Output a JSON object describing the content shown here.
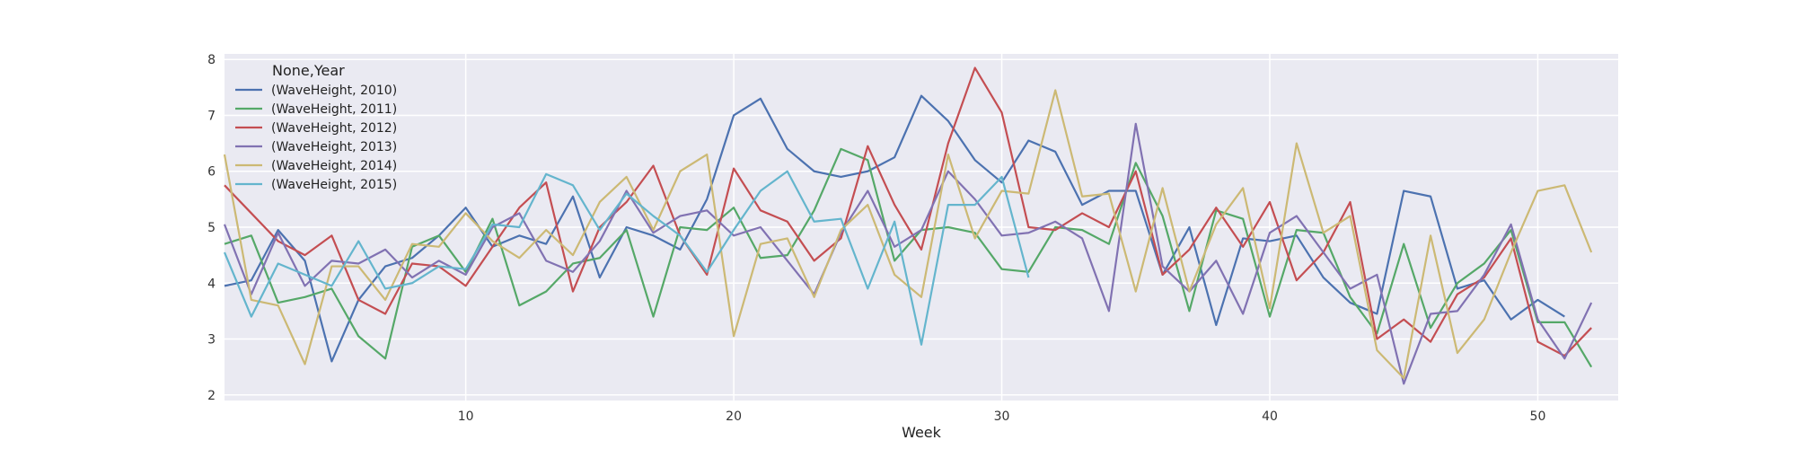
{
  "chart_data": {
    "type": "line",
    "xlabel": "Week",
    "ylabel": "",
    "xlim": [
      1,
      53
    ],
    "ylim": [
      1.9,
      8.1
    ],
    "x_ticks": [
      10,
      20,
      30,
      40,
      50
    ],
    "y_ticks": [
      2,
      3,
      4,
      5,
      6,
      7,
      8
    ],
    "grid": true,
    "legend": {
      "title": "None,Year",
      "placement": "top-left"
    },
    "x": [
      1,
      2,
      3,
      4,
      5,
      6,
      7,
      8,
      9,
      10,
      11,
      12,
      13,
      14,
      15,
      16,
      17,
      18,
      19,
      20,
      21,
      22,
      23,
      24,
      25,
      26,
      27,
      28,
      29,
      30,
      31,
      32,
      33,
      34,
      35,
      36,
      37,
      38,
      39,
      40,
      41,
      42,
      43,
      44,
      45,
      46,
      47,
      48,
      49,
      50,
      51,
      52
    ],
    "series": [
      {
        "name": "(WaveHeight, 2010)",
        "color": "#4C72B0",
        "values": [
          3.95,
          4.05,
          4.95,
          4.4,
          2.6,
          3.7,
          4.3,
          4.45,
          4.85,
          5.35,
          4.65,
          4.85,
          4.7,
          5.55,
          4.1,
          5.0,
          4.85,
          4.6,
          5.5,
          7.0,
          7.3,
          6.4,
          6.0,
          5.9,
          6.0,
          6.25,
          7.35,
          6.9,
          6.2,
          5.8,
          6.55,
          6.35,
          5.4,
          5.65,
          5.65,
          4.15,
          5.0,
          3.25,
          4.8,
          4.75,
          4.85,
          4.1,
          3.65,
          3.45,
          5.65,
          5.55,
          3.9,
          4.05,
          3.35,
          3.7,
          3.4,
          null
        ]
      },
      {
        "name": "(WaveHeight, 2011)",
        "color": "#55A868",
        "values": [
          4.7,
          4.85,
          3.65,
          3.75,
          3.9,
          3.05,
          2.65,
          4.65,
          4.85,
          4.2,
          5.15,
          3.6,
          3.85,
          4.35,
          4.45,
          4.95,
          3.4,
          5.0,
          4.95,
          5.35,
          4.45,
          4.5,
          5.3,
          6.4,
          6.2,
          4.4,
          4.95,
          5.0,
          4.9,
          4.25,
          4.2,
          5.0,
          4.95,
          4.7,
          6.15,
          5.2,
          3.5,
          5.3,
          5.15,
          3.4,
          4.95,
          4.9,
          3.75,
          3.1,
          4.7,
          3.2,
          4.0,
          4.35,
          4.95,
          3.3,
          3.3,
          2.5
        ]
      },
      {
        "name": "(WaveHeight, 2012)",
        "color": "#C44E52",
        "values": [
          5.75,
          5.25,
          4.75,
          4.5,
          4.85,
          3.7,
          3.45,
          4.35,
          4.3,
          3.95,
          4.65,
          5.35,
          5.8,
          3.85,
          5.0,
          5.45,
          6.1,
          4.85,
          4.15,
          6.05,
          5.3,
          5.1,
          4.4,
          4.8,
          6.45,
          5.4,
          4.6,
          6.5,
          7.85,
          7.05,
          5.0,
          4.95,
          5.25,
          5.0,
          6.0,
          4.15,
          4.6,
          5.35,
          4.65,
          5.45,
          4.05,
          4.55,
          5.45,
          3.0,
          3.35,
          2.95,
          3.8,
          4.1,
          4.8,
          2.95,
          2.7,
          3.2
        ]
      },
      {
        "name": "(WaveHeight, 2013)",
        "color": "#8172B2",
        "values": [
          5.05,
          3.8,
          4.9,
          3.95,
          4.4,
          4.35,
          4.6,
          4.1,
          4.4,
          4.15,
          5.0,
          5.25,
          4.4,
          4.2,
          4.75,
          5.65,
          4.9,
          5.2,
          5.3,
          4.85,
          5.0,
          4.4,
          3.8,
          4.9,
          5.65,
          4.65,
          4.95,
          6.0,
          5.5,
          4.85,
          4.9,
          5.1,
          4.8,
          3.5,
          6.85,
          4.3,
          3.85,
          4.4,
          3.45,
          4.9,
          5.2,
          4.55,
          3.9,
          4.15,
          2.2,
          3.45,
          3.5,
          4.15,
          5.05,
          3.35,
          2.65,
          3.65
        ]
      },
      {
        "name": "(WaveHeight, 2014)",
        "color": "#CCB974",
        "values": [
          6.3,
          3.7,
          3.6,
          2.55,
          4.3,
          4.3,
          3.7,
          4.7,
          4.65,
          5.25,
          4.75,
          4.45,
          4.95,
          4.5,
          5.45,
          5.9,
          4.95,
          6.0,
          6.3,
          3.05,
          4.7,
          4.8,
          3.75,
          4.95,
          5.4,
          4.15,
          3.75,
          6.3,
          4.8,
          5.65,
          5.6,
          7.45,
          5.55,
          5.6,
          3.85,
          5.7,
          3.85,
          5.05,
          5.7,
          3.55,
          6.5,
          4.9,
          5.2,
          2.8,
          2.3,
          4.85,
          2.75,
          3.35,
          4.55,
          5.65,
          5.75,
          4.55
        ]
      },
      {
        "name": "(WaveHeight, 2015)",
        "color": "#64B5CD",
        "values": [
          4.55,
          3.4,
          4.35,
          4.15,
          3.95,
          4.75,
          3.9,
          4.0,
          4.3,
          4.25,
          5.05,
          5.0,
          5.95,
          5.75,
          4.95,
          5.6,
          5.2,
          4.85,
          4.2,
          4.95,
          5.65,
          6.0,
          5.1,
          5.15,
          3.9,
          5.1,
          2.9,
          5.4,
          5.4,
          5.9,
          4.1,
          null,
          null,
          null,
          null,
          null,
          null,
          null,
          null,
          null,
          null,
          null,
          null,
          null,
          null,
          null,
          null,
          null,
          null,
          null,
          null,
          null
        ]
      }
    ]
  }
}
